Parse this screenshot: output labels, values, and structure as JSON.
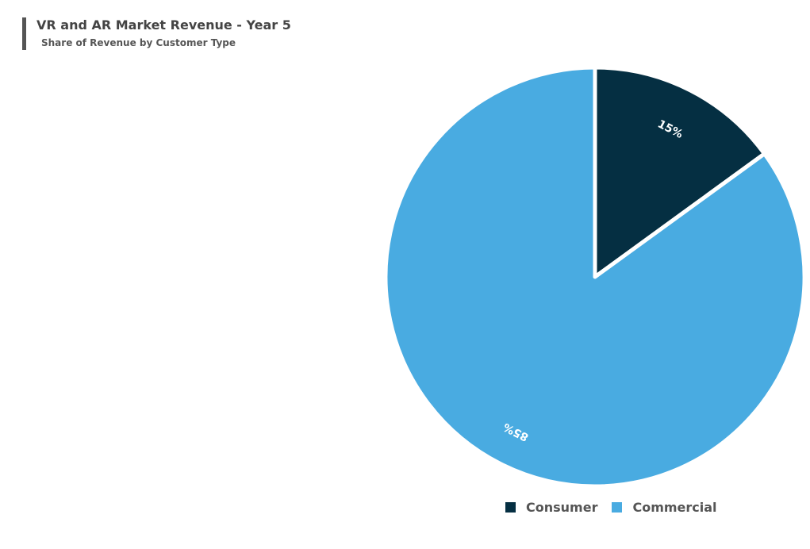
{
  "chart_data": {
    "type": "pie",
    "title": "VR and AR Market Revenue - Year 5",
    "subtitle": "Share of Revenue by Customer Type",
    "categories": [
      "Consumer",
      "Commercial"
    ],
    "values": [
      15,
      85
    ],
    "labels": [
      "15%",
      "85%"
    ],
    "colors": [
      "#052f42",
      "#49abe1"
    ],
    "legend_position": "bottom"
  }
}
